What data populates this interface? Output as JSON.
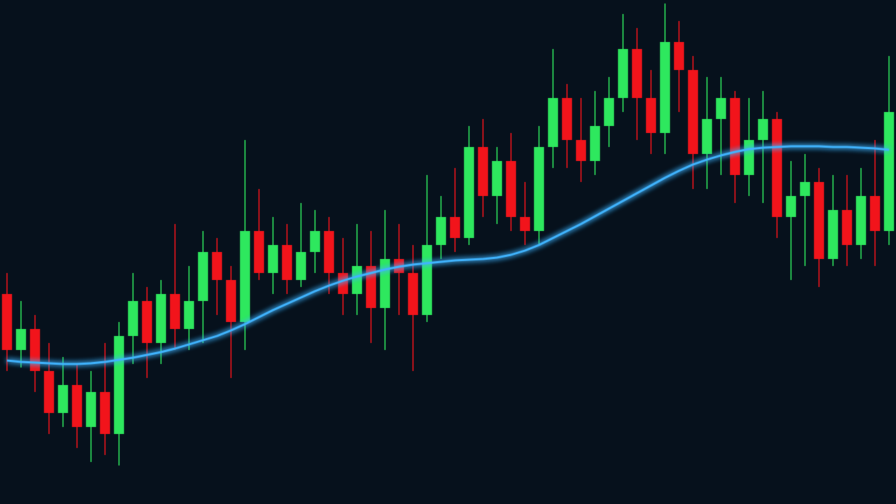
{
  "chart_data": {
    "type": "candlestick",
    "open": [
      300,
      220,
      250,
      190,
      130,
      170,
      110,
      160,
      100,
      240,
      290,
      230,
      300,
      250,
      290,
      360,
      320,
      260,
      390,
      330,
      370,
      320,
      360,
      390,
      330,
      300,
      340,
      280,
      350,
      330,
      270,
      370,
      410,
      380,
      510,
      440,
      490,
      410,
      390,
      510,
      580,
      520,
      490,
      540,
      580,
      650,
      580,
      530,
      660,
      620,
      500,
      550,
      580,
      470,
      520,
      550,
      410,
      440,
      460,
      350,
      420,
      370,
      440,
      390
    ],
    "high": [
      330,
      290,
      270,
      230,
      210,
      200,
      190,
      230,
      260,
      330,
      310,
      320,
      400,
      340,
      390,
      380,
      340,
      520,
      450,
      410,
      400,
      430,
      420,
      410,
      380,
      400,
      390,
      420,
      400,
      370,
      470,
      440,
      480,
      540,
      550,
      510,
      530,
      460,
      540,
      650,
      600,
      580,
      590,
      610,
      700,
      680,
      620,
      715,
      690,
      640,
      610,
      610,
      590,
      580,
      590,
      560,
      490,
      500,
      480,
      470,
      470,
      480,
      520,
      640
    ],
    "low": [
      190,
      195,
      160,
      100,
      110,
      80,
      60,
      70,
      55,
      200,
      180,
      200,
      220,
      220,
      230,
      270,
      180,
      220,
      320,
      300,
      300,
      310,
      330,
      300,
      270,
      270,
      230,
      220,
      270,
      190,
      260,
      350,
      360,
      370,
      410,
      400,
      390,
      370,
      370,
      480,
      480,
      460,
      470,
      510,
      560,
      520,
      500,
      500,
      560,
      450,
      450,
      470,
      430,
      440,
      430,
      380,
      320,
      340,
      310,
      340,
      340,
      350,
      340,
      370
    ],
    "close": [
      220,
      250,
      190,
      130,
      170,
      110,
      160,
      100,
      240,
      290,
      230,
      300,
      250,
      290,
      360,
      320,
      260,
      390,
      330,
      370,
      320,
      360,
      390,
      330,
      300,
      340,
      280,
      350,
      330,
      270,
      370,
      410,
      380,
      510,
      440,
      490,
      410,
      390,
      510,
      580,
      520,
      490,
      540,
      580,
      650,
      580,
      530,
      660,
      620,
      500,
      550,
      580,
      470,
      520,
      550,
      410,
      440,
      460,
      350,
      420,
      370,
      440,
      390,
      560
    ],
    "up_color": "#2ee85e",
    "down_color": "#f2141b",
    "overlay": {
      "color": "#3fb4ff",
      "values": [
        205,
        203,
        202,
        201,
        200,
        200,
        201,
        203,
        206,
        209,
        213,
        217,
        222,
        228,
        234,
        240,
        248,
        257,
        267,
        277,
        286,
        295,
        304,
        312,
        319,
        325,
        330,
        335,
        339,
        342,
        344,
        346,
        348,
        349,
        350,
        352,
        356,
        362,
        370,
        380,
        390,
        400,
        411,
        422,
        433,
        444,
        455,
        466,
        476,
        485,
        492,
        498,
        503,
        507,
        509,
        510,
        511,
        511,
        511,
        510,
        510,
        509,
        508,
        506
      ]
    },
    "ylim": [
      0,
      720
    ]
  }
}
